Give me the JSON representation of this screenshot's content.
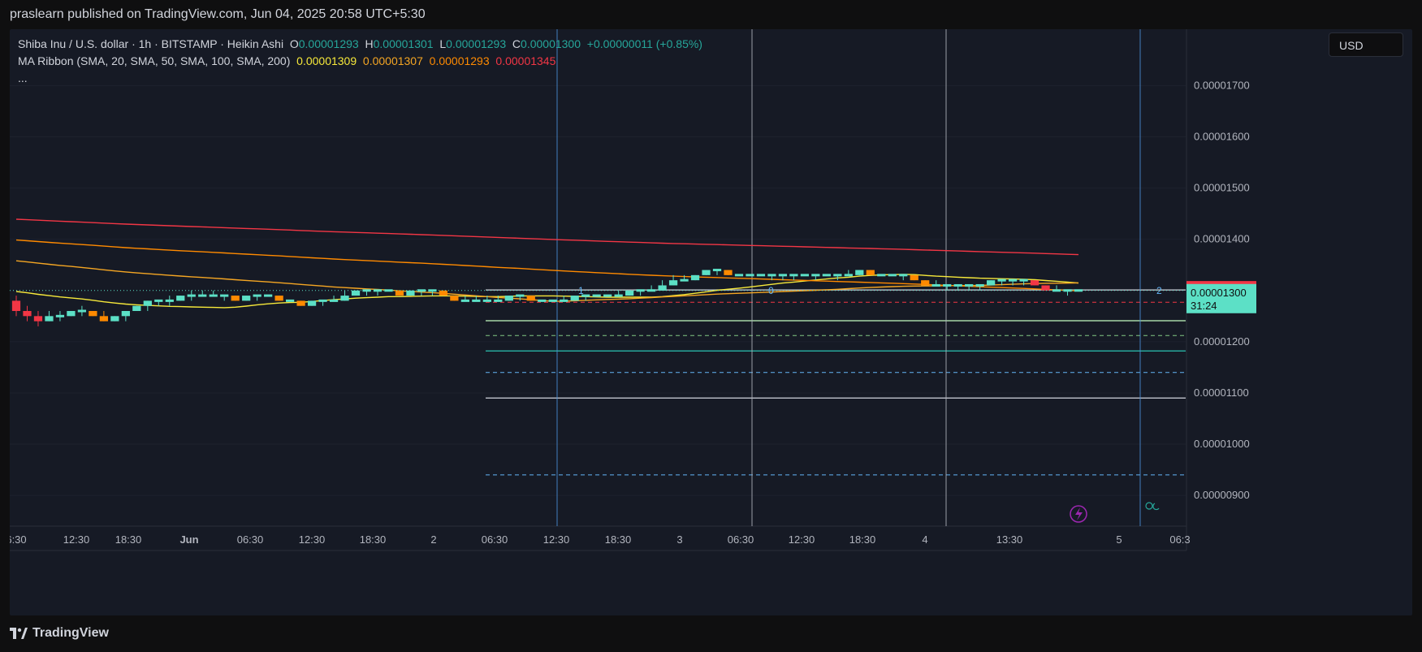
{
  "header": {
    "published_text": "praslearn published on TradingView.com, Jun 04, 2025 20:58 UTC+5:30"
  },
  "legend": {
    "symbol_line": "Shiba Inu / U.S. dollar · 1h · BITSTAMP · Heikin Ashi",
    "o_label": "O",
    "o_value": "0.00001293",
    "h_label": "H",
    "h_value": "0.00001301",
    "l_label": "L",
    "l_value": "0.00001293",
    "c_label": "C",
    "c_value": "0.00001300",
    "change": "+0.00000011 (+0.85%)",
    "ma_title": "MA Ribbon (SMA, 20, SMA, 50, SMA, 100, SMA, 200)",
    "ma_values": [
      "0.00001309",
      "0.00001307",
      "0.00001293",
      "0.00001345"
    ],
    "more": "..."
  },
  "currency_button": "USD",
  "footer": {
    "brand": "TradingView"
  },
  "colors": {
    "up": "#5ce0c6",
    "down": "#ff8a00",
    "down_red": "#f23645",
    "ma20": "#f7e93a",
    "ma50": "#f5a623",
    "ma100": "#ff8a00",
    "ma200": "#f23645",
    "price_label": "#f23645",
    "current_label": "#5ce0c6"
  },
  "chart_data": {
    "type": "candlestick",
    "chart_style": "Heikin Ashi",
    "interval": "1h",
    "exchange": "BITSTAMP",
    "symbol": "Shiba Inu / U.S. dollar",
    "ylim": [
      8.4e-06,
      1.81e-05
    ],
    "y_ticks": [
      {
        "v": 1.7e-05,
        "label": "0.00001700"
      },
      {
        "v": 1.6e-05,
        "label": "0.00001600"
      },
      {
        "v": 1.5e-05,
        "label": "0.00001500"
      },
      {
        "v": 1.4e-05,
        "label": "0.00001400"
      },
      {
        "v": 1.2e-05,
        "label": "0.00001200"
      },
      {
        "v": 1.1e-05,
        "label": "0.00001100"
      },
      {
        "v": 1e-05,
        "label": "0.00001000"
      },
      {
        "v": 9e-06,
        "label": "0.00000900"
      }
    ],
    "x_tick_labels": [
      "6:30",
      "12:30",
      "18:30",
      "Jun",
      "06:30",
      "12:30",
      "18:30",
      "2",
      "06:30",
      "12:30",
      "18:30",
      "3",
      "06:30",
      "12:30",
      "18:30",
      "4",
      "13:30",
      "5",
      "06:3"
    ],
    "price_labels": {
      "high_line": {
        "value": 1.301e-05,
        "label": "0.00001301"
      },
      "current": {
        "value": 1.3e-05,
        "label": "0.00001300",
        "countdown": "31:24"
      }
    },
    "fib_levels": [
      {
        "value": 1.301e-05,
        "style": "solid",
        "color": "#b2b5be"
      },
      {
        "value": 1.277e-05,
        "style": "dashed",
        "color": "#f23645"
      },
      {
        "value": 1.241e-05,
        "style": "solid",
        "color": "#a5d6a7"
      },
      {
        "value": 1.212e-05,
        "style": "dashed",
        "color": "#81c784"
      },
      {
        "value": 1.182e-05,
        "style": "solid",
        "color": "#26a69a"
      },
      {
        "value": 1.14e-05,
        "style": "dashed",
        "color": "#64b5f6"
      },
      {
        "value": 1.09e-05,
        "style": "solid",
        "color": "#b2b5be"
      },
      {
        "value": 9.4e-06,
        "style": "dashed",
        "color": "#64b5f6"
      }
    ],
    "wave_labels": [
      "1",
      "0",
      "2"
    ],
    "ma_ribbon": [
      {
        "name": "SMA 20",
        "color": "#f7e93a"
      },
      {
        "name": "SMA 50",
        "color": "#f5a623"
      },
      {
        "name": "SMA 100",
        "color": "#ff8a00"
      },
      {
        "name": "SMA 200",
        "color": "#f23645"
      }
    ],
    "candles": [
      [
        1.28e-05,
        1.26e-05,
        1.29e-05,
        1.25e-05
      ],
      [
        1.26e-05,
        1.25e-05,
        1.27e-05,
        1.24e-05
      ],
      [
        1.25e-05,
        1.24e-05,
        1.26e-05,
        1.23e-05
      ],
      [
        1.24e-05,
        1.25e-05,
        1.26e-05,
        1.24e-05
      ],
      [
        1.25e-05,
        1.25e-05,
        1.26e-05,
        1.24e-05
      ],
      [
        1.25e-05,
        1.26e-05,
        1.26e-05,
        1.25e-05
      ],
      [
        1.26e-05,
        1.26e-05,
        1.27e-05,
        1.25e-05
      ],
      [
        1.26e-05,
        1.25e-05,
        1.26e-05,
        1.25e-05
      ],
      [
        1.25e-05,
        1.24e-05,
        1.26e-05,
        1.24e-05
      ],
      [
        1.24e-05,
        1.25e-05,
        1.25e-05,
        1.24e-05
      ],
      [
        1.25e-05,
        1.26e-05,
        1.26e-05,
        1.24e-05
      ],
      [
        1.26e-05,
        1.27e-05,
        1.27e-05,
        1.26e-05
      ],
      [
        1.27e-05,
        1.28e-05,
        1.28e-05,
        1.26e-05
      ],
      [
        1.28e-05,
        1.28e-05,
        1.28e-05,
        1.27e-05
      ],
      [
        1.28e-05,
        1.28e-05,
        1.29e-05,
        1.27e-05
      ],
      [
        1.28e-05,
        1.29e-05,
        1.29e-05,
        1.28e-05
      ],
      [
        1.29e-05,
        1.29e-05,
        1.3e-05,
        1.28e-05
      ],
      [
        1.29e-05,
        1.29e-05,
        1.3e-05,
        1.29e-05
      ],
      [
        1.29e-05,
        1.29e-05,
        1.3e-05,
        1.29e-05
      ],
      [
        1.29e-05,
        1.29e-05,
        1.29e-05,
        1.28e-05
      ],
      [
        1.29e-05,
        1.28e-05,
        1.29e-05,
        1.28e-05
      ],
      [
        1.28e-05,
        1.29e-05,
        1.29e-05,
        1.28e-05
      ],
      [
        1.29e-05,
        1.29e-05,
        1.29e-05,
        1.28e-05
      ],
      [
        1.29e-05,
        1.29e-05,
        1.29e-05,
        1.29e-05
      ],
      [
        1.29e-05,
        1.28e-05,
        1.29e-05,
        1.28e-05
      ],
      [
        1.28e-05,
        1.28e-05,
        1.28e-05,
        1.28e-05
      ],
      [
        1.28e-05,
        1.27e-05,
        1.28e-05,
        1.27e-05
      ],
      [
        1.27e-05,
        1.28e-05,
        1.28e-05,
        1.27e-05
      ],
      [
        1.28e-05,
        1.28e-05,
        1.28e-05,
        1.27e-05
      ],
      [
        1.28e-05,
        1.28e-05,
        1.29e-05,
        1.28e-05
      ],
      [
        1.28e-05,
        1.29e-05,
        1.3e-05,
        1.28e-05
      ],
      [
        1.29e-05,
        1.3e-05,
        1.3e-05,
        1.29e-05
      ],
      [
        1.3e-05,
        1.3e-05,
        1.3e-05,
        1.29e-05
      ],
      [
        1.3e-05,
        1.3e-05,
        1.3e-05,
        1.29e-05
      ],
      [
        1.3e-05,
        1.3e-05,
        1.3e-05,
        1.3e-05
      ],
      [
        1.3e-05,
        1.29e-05,
        1.3e-05,
        1.29e-05
      ],
      [
        1.29e-05,
        1.3e-05,
        1.3e-05,
        1.29e-05
      ],
      [
        1.3e-05,
        1.3e-05,
        1.3e-05,
        1.29e-05
      ],
      [
        1.3e-05,
        1.3e-05,
        1.3e-05,
        1.29e-05
      ],
      [
        1.3e-05,
        1.29e-05,
        1.3e-05,
        1.29e-05
      ],
      [
        1.29e-05,
        1.28e-05,
        1.29e-05,
        1.28e-05
      ],
      [
        1.28e-05,
        1.28e-05,
        1.29e-05,
        1.28e-05
      ],
      [
        1.28e-05,
        1.28e-05,
        1.29e-05,
        1.28e-05
      ],
      [
        1.28e-05,
        1.28e-05,
        1.29e-05,
        1.28e-05
      ],
      [
        1.28e-05,
        1.28e-05,
        1.29e-05,
        1.28e-05
      ],
      [
        1.28e-05,
        1.29e-05,
        1.29e-05,
        1.28e-05
      ],
      [
        1.29e-05,
        1.29e-05,
        1.29e-05,
        1.28e-05
      ],
      [
        1.29e-05,
        1.28e-05,
        1.29e-05,
        1.28e-05
      ],
      [
        1.28e-05,
        1.28e-05,
        1.28e-05,
        1.28e-05
      ],
      [
        1.28e-05,
        1.28e-05,
        1.28e-05,
        1.28e-05
      ],
      [
        1.28e-05,
        1.28e-05,
        1.29e-05,
        1.28e-05
      ],
      [
        1.28e-05,
        1.29e-05,
        1.29e-05,
        1.28e-05
      ],
      [
        1.29e-05,
        1.29e-05,
        1.29e-05,
        1.28e-05
      ],
      [
        1.29e-05,
        1.29e-05,
        1.29e-05,
        1.29e-05
      ],
      [
        1.29e-05,
        1.29e-05,
        1.29e-05,
        1.29e-05
      ],
      [
        1.29e-05,
        1.29e-05,
        1.3e-05,
        1.29e-05
      ],
      [
        1.29e-05,
        1.3e-05,
        1.3e-05,
        1.29e-05
      ],
      [
        1.3e-05,
        1.3e-05,
        1.3e-05,
        1.29e-05
      ],
      [
        1.3e-05,
        1.3e-05,
        1.31e-05,
        1.3e-05
      ],
      [
        1.3e-05,
        1.31e-05,
        1.32e-05,
        1.3e-05
      ],
      [
        1.31e-05,
        1.32e-05,
        1.33e-05,
        1.31e-05
      ],
      [
        1.32e-05,
        1.32e-05,
        1.33e-05,
        1.32e-05
      ],
      [
        1.32e-05,
        1.33e-05,
        1.33e-05,
        1.32e-05
      ],
      [
        1.33e-05,
        1.34e-05,
        1.34e-05,
        1.33e-05
      ],
      [
        1.34e-05,
        1.34e-05,
        1.34e-05,
        1.33e-05
      ],
      [
        1.34e-05,
        1.33e-05,
        1.34e-05,
        1.33e-05
      ],
      [
        1.33e-05,
        1.33e-05,
        1.33e-05,
        1.33e-05
      ],
      [
        1.33e-05,
        1.33e-05,
        1.33e-05,
        1.33e-05
      ],
      [
        1.33e-05,
        1.33e-05,
        1.33e-05,
        1.33e-05
      ],
      [
        1.33e-05,
        1.33e-05,
        1.33e-05,
        1.32e-05
      ],
      [
        1.33e-05,
        1.33e-05,
        1.33e-05,
        1.32e-05
      ],
      [
        1.33e-05,
        1.33e-05,
        1.33e-05,
        1.32e-05
      ],
      [
        1.33e-05,
        1.33e-05,
        1.33e-05,
        1.33e-05
      ],
      [
        1.33e-05,
        1.33e-05,
        1.33e-05,
        1.32e-05
      ],
      [
        1.33e-05,
        1.33e-05,
        1.33e-05,
        1.33e-05
      ],
      [
        1.33e-05,
        1.33e-05,
        1.33e-05,
        1.32e-05
      ],
      [
        1.33e-05,
        1.33e-05,
        1.34e-05,
        1.33e-05
      ],
      [
        1.33e-05,
        1.34e-05,
        1.34e-05,
        1.33e-05
      ],
      [
        1.34e-05,
        1.33e-05,
        1.34e-05,
        1.33e-05
      ],
      [
        1.33e-05,
        1.33e-05,
        1.33e-05,
        1.33e-05
      ],
      [
        1.33e-05,
        1.33e-05,
        1.33e-05,
        1.33e-05
      ],
      [
        1.33e-05,
        1.33e-05,
        1.33e-05,
        1.32e-05
      ],
      [
        1.33e-05,
        1.32e-05,
        1.33e-05,
        1.32e-05
      ],
      [
        1.32e-05,
        1.31e-05,
        1.32e-05,
        1.31e-05
      ],
      [
        1.31e-05,
        1.31e-05,
        1.32e-05,
        1.31e-05
      ],
      [
        1.31e-05,
        1.31e-05,
        1.31e-05,
        1.3e-05
      ],
      [
        1.31e-05,
        1.31e-05,
        1.31e-05,
        1.3e-05
      ],
      [
        1.31e-05,
        1.31e-05,
        1.31e-05,
        1.3e-05
      ],
      [
        1.31e-05,
        1.31e-05,
        1.31e-05,
        1.3e-05
      ],
      [
        1.31e-05,
        1.32e-05,
        1.32e-05,
        1.31e-05
      ],
      [
        1.32e-05,
        1.32e-05,
        1.32e-05,
        1.31e-05
      ],
      [
        1.32e-05,
        1.32e-05,
        1.32e-05,
        1.31e-05
      ],
      [
        1.32e-05,
        1.32e-05,
        1.32e-05,
        1.31e-05
      ],
      [
        1.32e-05,
        1.31e-05,
        1.32e-05,
        1.31e-05
      ],
      [
        1.31e-05,
        1.3e-05,
        1.31e-05,
        1.3e-05
      ],
      [
        1.3e-05,
        1.3e-05,
        1.31e-05,
        1.3e-05
      ],
      [
        1.3e-05,
        1.3e-05,
        1.3e-05,
        1.29e-05
      ],
      [
        1.3e-05,
        1.3e-05,
        1.3e-05,
        1.3e-05
      ]
    ]
  }
}
